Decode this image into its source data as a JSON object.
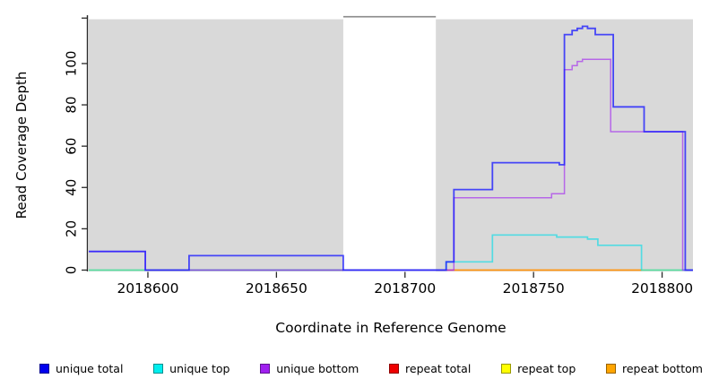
{
  "figure": {
    "y_axis_title": "Read Coverage Depth",
    "x_axis_title": "Coordinate in Reference Genome"
  },
  "legend": {
    "items": [
      {
        "label": "unique total",
        "color": "#0000ee"
      },
      {
        "label": "unique top",
        "color": "#00eeee"
      },
      {
        "label": "unique bottom",
        "color": "#a020f0"
      },
      {
        "label": "repeat total",
        "color": "#ee0000"
      },
      {
        "label": "repeat top",
        "color": "#ffff00"
      },
      {
        "label": "repeat bottom",
        "color": "#ffa500"
      }
    ]
  },
  "chart_data": {
    "type": "line",
    "step": true,
    "title": "",
    "xlabel": "Coordinate in Reference Genome",
    "ylabel": "Read Coverage Depth",
    "xlim": [
      2018577,
      2018812
    ],
    "ylim": [
      0,
      122
    ],
    "x_ticks": [
      2018600,
      2018650,
      2018700,
      2018750,
      2018800
    ],
    "y_ticks": [
      0,
      20,
      40,
      60,
      80,
      100
    ],
    "y_tick_unlabeled": 122,
    "grid": false,
    "legend_position": "bottom",
    "plot_bg": "#d9d9d9",
    "masked_region": {
      "x0": 2018676,
      "x1": 2018712,
      "color": "#ffffff",
      "top_border_color": "#8a8a8a"
    },
    "series": [
      {
        "name": "repeat top",
        "color": "#f0e430",
        "opacity": 1,
        "width": 1.5,
        "segments": [
          [
            [
              2018577,
              0
            ],
            [
              2018616,
              0
            ]
          ],
          [
            [
              2018792,
              0
            ],
            [
              2018808,
              0
            ]
          ]
        ]
      },
      {
        "name": "repeat total",
        "color": "#d84a60",
        "opacity": 0.9,
        "width": 1.5,
        "segments": [
          [
            [
              2018616,
              0
            ],
            [
              2018719,
              0
            ]
          ]
        ]
      },
      {
        "name": "repeat bottom",
        "color": "#ff9510",
        "opacity": 1,
        "width": 1.8,
        "segments": [
          [
            [
              2018719,
              0
            ],
            [
              2018792,
              0
            ]
          ]
        ]
      },
      {
        "name": "unique top",
        "color": "#00dbe6",
        "opacity": 0.62,
        "width": 1.7,
        "segments": [
          [
            [
              2018577,
              0
            ],
            [
              2018716,
              4
            ],
            [
              2018734,
              17
            ],
            [
              2018759,
              16
            ],
            [
              2018771,
              15
            ],
            [
              2018775,
              12
            ],
            [
              2018792,
              0
            ],
            [
              2018812,
              0
            ]
          ]
        ]
      },
      {
        "name": "unique bottom",
        "color": "#a020f0",
        "opacity": 0.62,
        "width": 1.5,
        "segments": [
          [
            [
              2018577,
              9
            ],
            [
              2018599,
              0
            ],
            [
              2018719,
              35
            ],
            [
              2018757,
              37
            ],
            [
              2018762,
              97
            ],
            [
              2018765,
              99
            ],
            [
              2018767,
              101
            ],
            [
              2018769,
              102
            ],
            [
              2018780,
              67
            ],
            [
              2018808,
              0
            ],
            [
              2018812,
              0
            ]
          ]
        ]
      },
      {
        "name": "unique total",
        "color": "#1b1bff",
        "opacity": 0.78,
        "width": 1.8,
        "segments": [
          [
            [
              2018577,
              9
            ],
            [
              2018599,
              0
            ],
            [
              2018616,
              7
            ],
            [
              2018676,
              0
            ],
            [
              2018716,
              4
            ],
            [
              2018719,
              39
            ],
            [
              2018734,
              52
            ],
            [
              2018760,
              51
            ],
            [
              2018762,
              114
            ],
            [
              2018765,
              116
            ],
            [
              2018767,
              117
            ],
            [
              2018769,
              118
            ],
            [
              2018771,
              117
            ],
            [
              2018774,
              114
            ],
            [
              2018781,
              79
            ],
            [
              2018793,
              67
            ],
            [
              2018809,
              0
            ],
            [
              2018812,
              0
            ]
          ]
        ]
      }
    ]
  }
}
